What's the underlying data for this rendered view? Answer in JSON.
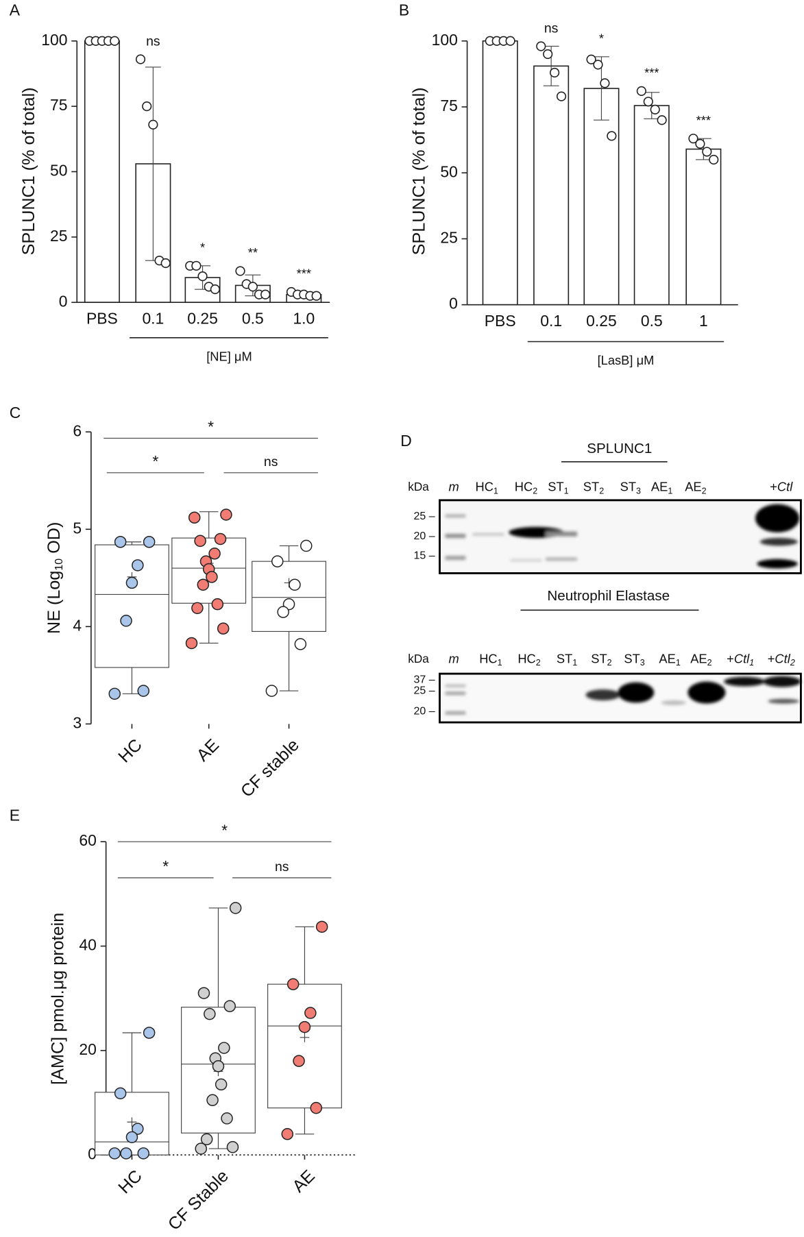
{
  "chart_data": [
    {
      "panel": "A",
      "type": "bar",
      "ylabel": "SPLUNC1 (% of total)",
      "xlabel": "[NE] μM",
      "categories": [
        "PBS",
        "0.1",
        "0.25",
        "0.5",
        "1.0"
      ],
      "values": [
        100,
        53,
        9.5,
        6.5,
        3
      ],
      "errors": [
        0,
        37,
        4.5,
        4,
        1
      ],
      "points": [
        [
          100,
          100,
          100,
          100,
          100
        ],
        [
          93,
          75,
          68,
          16,
          15
        ],
        [
          14,
          14,
          10,
          6,
          5
        ],
        [
          12,
          7,
          6,
          3,
          3
        ],
        [
          4,
          3,
          3,
          2.5,
          2.5
        ]
      ],
      "significance": [
        null,
        "ns",
        "*",
        "**",
        "***"
      ],
      "color": "#ffffff",
      "ylim": [
        0,
        100
      ],
      "yticks": [
        0,
        25,
        50,
        75,
        100
      ]
    },
    {
      "panel": "B",
      "type": "bar",
      "ylabel": "SPLUNC1 (% of total)",
      "xlabel": "[LasB] μM",
      "categories": [
        "PBS",
        "0.1",
        "0.25",
        "0.5",
        "1"
      ],
      "values": [
        100,
        90.5,
        82,
        75.5,
        59
      ],
      "errors": [
        0,
        7.5,
        12,
        5,
        4
      ],
      "points": [
        [
          100,
          100,
          100,
          100
        ],
        [
          98,
          95,
          88,
          79
        ],
        [
          93,
          91,
          84,
          64
        ],
        [
          81,
          77,
          74,
          70
        ],
        [
          63,
          61,
          58,
          55
        ]
      ],
      "significance": [
        null,
        "ns",
        "*",
        "***",
        "***"
      ],
      "color": "#ffffff",
      "ylim": [
        0,
        100
      ],
      "yticks": [
        0,
        25,
        50,
        75,
        100
      ]
    },
    {
      "panel": "C",
      "type": "box",
      "ylabel": [
        "NE (Log",
        "10",
        " OD)"
      ],
      "categories": [
        "HC",
        "AE",
        "CF stable"
      ],
      "boxes": [
        {
          "color": "#a9c6ea",
          "min": 3.31,
          "q1": 3.58,
          "median": 4.33,
          "q3": 4.84,
          "max": 4.87,
          "mean": 4.51,
          "points": [
            4.87,
            4.87,
            4.63,
            4.45,
            4.06,
            3.34,
            3.31
          ]
        },
        {
          "color": "#f07c74",
          "min": 3.83,
          "q1": 4.24,
          "median": 4.6,
          "q3": 4.91,
          "max": 5.18,
          "mean": 4.65,
          "points": [
            5.15,
            5.12,
            4.9,
            4.88,
            4.75,
            4.67,
            4.59,
            4.51,
            4.43,
            4.23,
            4.19,
            3.98,
            3.83
          ]
        },
        {
          "color": "#ffffff",
          "min": 3.34,
          "q1": 3.95,
          "median": 4.3,
          "q3": 4.67,
          "max": 4.83,
          "mean": 4.45,
          "points": [
            4.83,
            4.67,
            4.43,
            4.23,
            4.15,
            3.82,
            3.34
          ]
        }
      ],
      "comparisons": [
        {
          "groups": [
            0,
            2
          ],
          "label": "*"
        },
        {
          "groups": [
            0,
            1
          ],
          "label": "*"
        },
        {
          "groups": [
            1,
            2
          ],
          "label": "ns"
        }
      ],
      "ylim": [
        3,
        6
      ],
      "yticks": [
        3,
        4,
        5,
        6
      ]
    },
    {
      "panel": "E",
      "type": "box",
      "ylabel": "[AMC] pmol.μg protein",
      "categories": [
        "HC",
        "CF Stable",
        "AE"
      ],
      "boxes": [
        {
          "color": "#a9c6ea",
          "min": 0,
          "q1": 0,
          "median": 2.5,
          "q3": 12,
          "max": 23.4,
          "mean": 6.3,
          "points": [
            23.4,
            11.8,
            5,
            3.4,
            0.3,
            0.3,
            0.3
          ]
        },
        {
          "color": "#d0d0d0",
          "min": 1.2,
          "q1": 4.2,
          "median": 17.4,
          "q3": 28.3,
          "max": 47.3,
          "mean": 16,
          "points": [
            47.3,
            31,
            28.5,
            27,
            20.5,
            18.5,
            17,
            13.5,
            10.5,
            7,
            3,
            1.5,
            1.2
          ]
        },
        {
          "color": "#f07c74",
          "min": 4,
          "q1": 9,
          "median": 24.7,
          "q3": 32.7,
          "max": 43.7,
          "mean": 22.5,
          "points": [
            43.7,
            32.7,
            27.2,
            24.5,
            18,
            9,
            4
          ]
        }
      ],
      "comparisons": [
        {
          "groups": [
            0,
            2
          ],
          "label": "*"
        },
        {
          "groups": [
            0,
            1
          ],
          "label": "*"
        },
        {
          "groups": [
            1,
            2
          ],
          "label": "ns"
        }
      ],
      "baseline": "dotted",
      "ylim": [
        0,
        60
      ],
      "yticks": [
        0,
        20,
        40,
        60
      ]
    }
  ],
  "blot_panel": {
    "panel": "D",
    "blots": [
      {
        "title": "SPLUNC1",
        "unit": "kDa",
        "marker_lane": "m",
        "lanes": [
          {
            "main": "HC",
            "sub": "1"
          },
          {
            "main": "HC",
            "sub": "2"
          },
          {
            "main": "ST",
            "sub": "1"
          },
          {
            "main": "ST",
            "sub": "2"
          },
          {
            "main": "ST",
            "sub": "3"
          },
          {
            "main": "AE",
            "sub": "1"
          },
          {
            "main": "AE",
            "sub": "2"
          },
          {
            "main": "+",
            "italic": "Ctl"
          }
        ],
        "markers": [
          "25 –",
          "20 –",
          "15 –"
        ]
      },
      {
        "title": "Neutrophil Elastase",
        "unit": "kDa",
        "marker_lane": "m",
        "lanes": [
          {
            "main": "HC",
            "sub": "1"
          },
          {
            "main": "HC",
            "sub": "2"
          },
          {
            "main": "ST",
            "sub": "1"
          },
          {
            "main": "ST",
            "sub": "2"
          },
          {
            "main": "ST",
            "sub": "3"
          },
          {
            "main": "AE",
            "sub": "1"
          },
          {
            "main": "AE",
            "sub": "2"
          },
          {
            "main": "+",
            "italic": "Ctl",
            "sub": "1"
          },
          {
            "main": "+",
            "italic": "Ctl",
            "sub": "2"
          }
        ],
        "markers": [
          "37 –",
          "25 –",
          "20 –"
        ]
      }
    ]
  }
}
